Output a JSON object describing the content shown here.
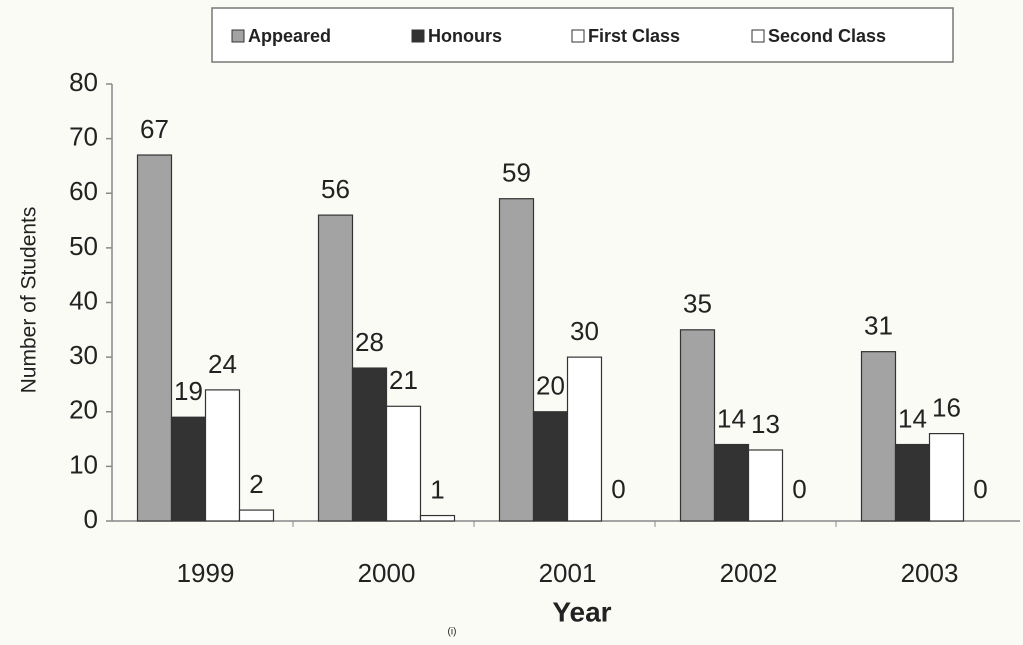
{
  "chart_data": {
    "type": "bar",
    "y_label": "Number of Students",
    "x_label": "Year",
    "note": "(i)",
    "categories": [
      "1999",
      "2000",
      "2001",
      "2002",
      "2003"
    ],
    "series": [
      {
        "name": "Appeared",
        "color": "#a3a3a3",
        "values": [
          67,
          56,
          59,
          35,
          31
        ]
      },
      {
        "name": "Honours",
        "color": "#333333",
        "values": [
          19,
          28,
          20,
          14,
          14
        ]
      },
      {
        "name": "First Class",
        "color": "#ffffff",
        "values": [
          24,
          21,
          30,
          13,
          16
        ]
      },
      {
        "name": "Second Class",
        "color": "#ffffff",
        "values": [
          2,
          1,
          0,
          0,
          0
        ]
      }
    ],
    "ylim": [
      0,
      80
    ],
    "yticks": [
      0,
      10,
      20,
      30,
      40,
      50,
      60,
      70,
      80
    ],
    "legend": "top"
  }
}
